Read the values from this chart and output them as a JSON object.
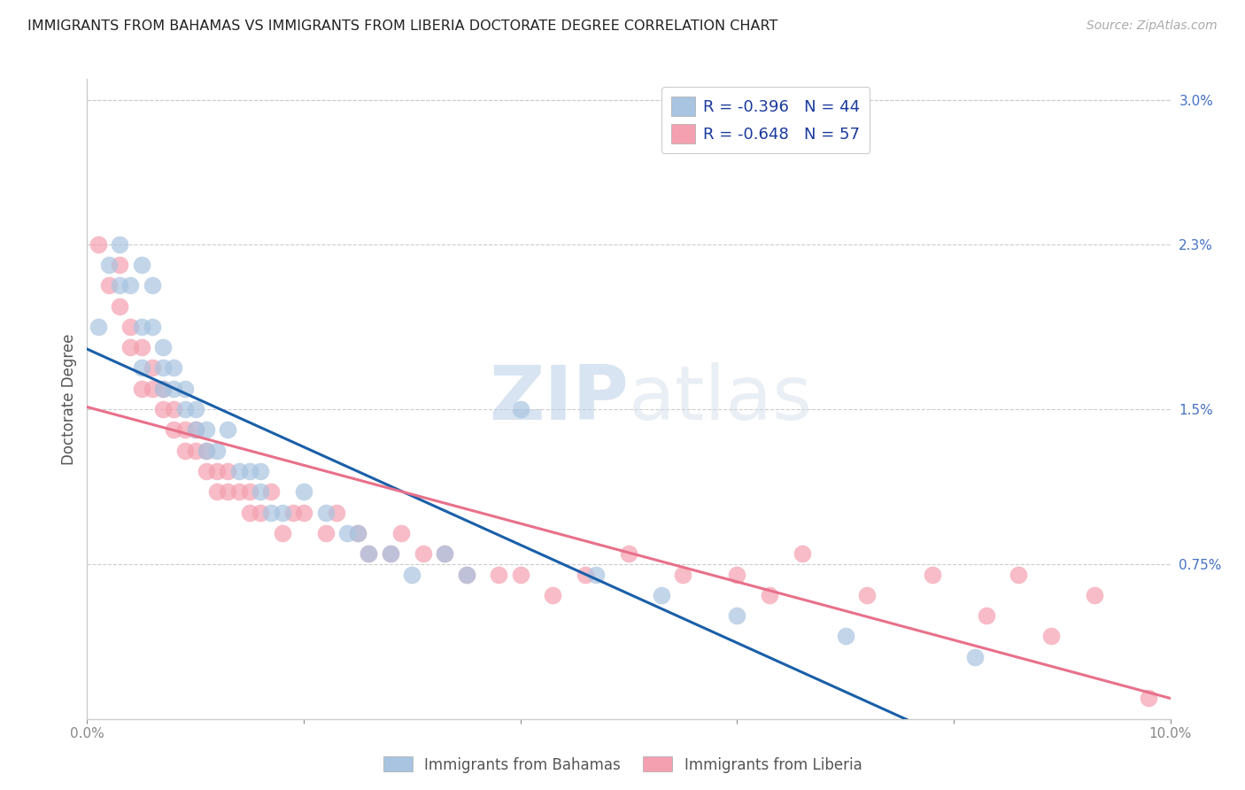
{
  "title": "IMMIGRANTS FROM BAHAMAS VS IMMIGRANTS FROM LIBERIA DOCTORATE DEGREE CORRELATION CHART",
  "source": "Source: ZipAtlas.com",
  "ylabel": "Doctorate Degree",
  "xlim": [
    0.0,
    0.1
  ],
  "ylim": [
    0.0,
    0.031
  ],
  "yticks_right": [
    0.0,
    0.0075,
    0.015,
    0.023,
    0.03
  ],
  "ytick_labels_right": [
    "",
    "0.75%",
    "1.5%",
    "2.3%",
    "3.0%"
  ],
  "bahamas_R": -0.396,
  "bahamas_N": 44,
  "liberia_R": -0.648,
  "liberia_N": 57,
  "bahamas_color": "#a8c4e0",
  "liberia_color": "#f4a0b0",
  "trend_bahamas_color": "#1a5fa8",
  "trend_liberia_color": "#e8708a",
  "background_color": "#ffffff",
  "grid_color": "#cccccc",
  "watermark_zip": "ZIP",
  "watermark_atlas": "atlas",
  "bahamas_x": [
    0.001,
    0.002,
    0.003,
    0.003,
    0.004,
    0.005,
    0.005,
    0.005,
    0.006,
    0.006,
    0.007,
    0.007,
    0.007,
    0.008,
    0.008,
    0.009,
    0.009,
    0.01,
    0.01,
    0.011,
    0.011,
    0.012,
    0.013,
    0.014,
    0.015,
    0.016,
    0.016,
    0.017,
    0.018,
    0.02,
    0.022,
    0.024,
    0.025,
    0.026,
    0.028,
    0.03,
    0.033,
    0.035,
    0.04,
    0.047,
    0.053,
    0.06,
    0.07,
    0.082
  ],
  "bahamas_y": [
    0.019,
    0.022,
    0.021,
    0.023,
    0.021,
    0.022,
    0.019,
    0.017,
    0.021,
    0.019,
    0.018,
    0.017,
    0.016,
    0.017,
    0.016,
    0.016,
    0.015,
    0.015,
    0.014,
    0.014,
    0.013,
    0.013,
    0.014,
    0.012,
    0.012,
    0.011,
    0.012,
    0.01,
    0.01,
    0.011,
    0.01,
    0.009,
    0.009,
    0.008,
    0.008,
    0.007,
    0.008,
    0.007,
    0.015,
    0.007,
    0.006,
    0.005,
    0.004,
    0.003
  ],
  "liberia_x": [
    0.001,
    0.002,
    0.003,
    0.003,
    0.004,
    0.004,
    0.005,
    0.005,
    0.006,
    0.006,
    0.007,
    0.007,
    0.008,
    0.008,
    0.009,
    0.009,
    0.01,
    0.01,
    0.011,
    0.011,
    0.012,
    0.012,
    0.013,
    0.013,
    0.014,
    0.015,
    0.015,
    0.016,
    0.017,
    0.018,
    0.019,
    0.02,
    0.022,
    0.023,
    0.025,
    0.026,
    0.028,
    0.029,
    0.031,
    0.033,
    0.035,
    0.038,
    0.04,
    0.043,
    0.046,
    0.05,
    0.055,
    0.06,
    0.063,
    0.066,
    0.072,
    0.078,
    0.083,
    0.086,
    0.089,
    0.093,
    0.098
  ],
  "liberia_y": [
    0.023,
    0.021,
    0.022,
    0.02,
    0.019,
    0.018,
    0.018,
    0.016,
    0.017,
    0.016,
    0.016,
    0.015,
    0.015,
    0.014,
    0.014,
    0.013,
    0.014,
    0.013,
    0.013,
    0.012,
    0.012,
    0.011,
    0.012,
    0.011,
    0.011,
    0.011,
    0.01,
    0.01,
    0.011,
    0.009,
    0.01,
    0.01,
    0.009,
    0.01,
    0.009,
    0.008,
    0.008,
    0.009,
    0.008,
    0.008,
    0.007,
    0.007,
    0.007,
    0.006,
    0.007,
    0.008,
    0.007,
    0.007,
    0.006,
    0.008,
    0.006,
    0.007,
    0.005,
    0.007,
    0.004,
    0.006,
    0.001
  ],
  "trend_bahamas_x0": 0.0,
  "trend_bahamas_y0": 0.0165,
  "trend_bahamas_x1": 0.1,
  "trend_bahamas_y1": 0.0,
  "trend_liberia_x0": 0.0,
  "trend_liberia_y0": 0.0155,
  "trend_liberia_x1": 0.1,
  "trend_liberia_y1": 0.001
}
